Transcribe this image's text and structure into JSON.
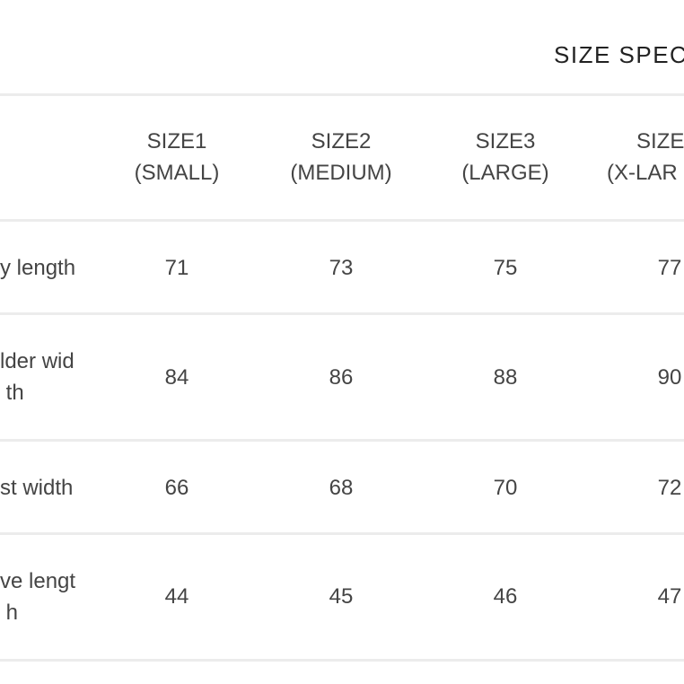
{
  "title": "SIZE SPEC",
  "columns": [
    {
      "line1": "SIZE1",
      "line2": "(SMALL)"
    },
    {
      "line1": "SIZE2",
      "line2": "(MEDIUM)"
    },
    {
      "line1": "SIZE3",
      "line2": "(LARGE)"
    },
    {
      "line1": "SIZE",
      "line2": "(X-LAR"
    }
  ],
  "rows": [
    {
      "label": "y length",
      "values": [
        "71",
        "73",
        "75",
        "77"
      ]
    },
    {
      "label": "lder wid\n th",
      "values": [
        "84",
        "86",
        "88",
        "90"
      ]
    },
    {
      "label": "st width",
      "values": [
        "66",
        "68",
        "70",
        "72"
      ]
    },
    {
      "label": "ve lengt\n h",
      "values": [
        "44",
        "45",
        "46",
        "47"
      ]
    }
  ]
}
